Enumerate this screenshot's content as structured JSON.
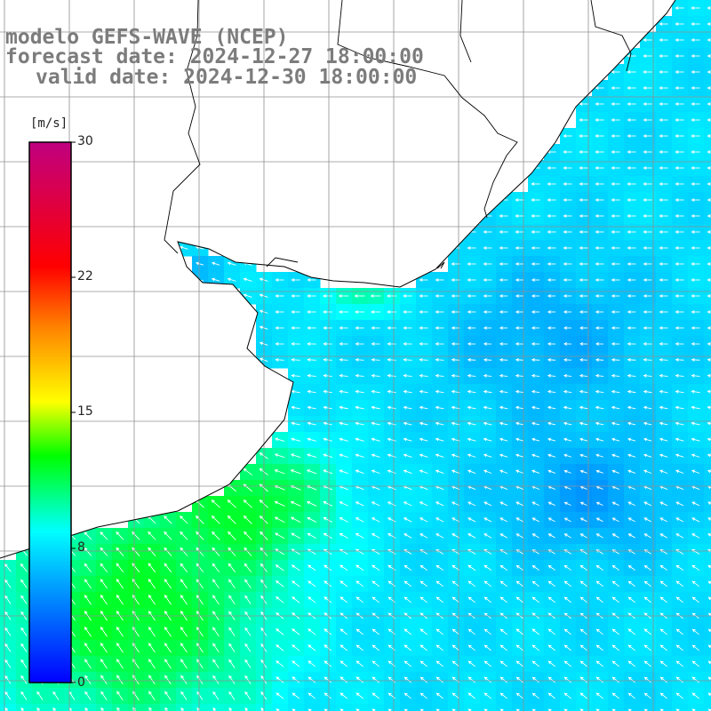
{
  "title": {
    "model": "modelo GEFS-WAVE (NCEP)",
    "forecast": "forecast date: 2024-12-27 18:00:00",
    "valid": "valid date: 2024-12-30 18:00:00"
  },
  "colorbar": {
    "unit": "[m/s]",
    "ticks": [
      "30",
      "22",
      "15",
      "8",
      "0"
    ],
    "stops": [
      "#0000ff",
      "#00a0ff",
      "#00ffff",
      "#00ff00",
      "#ffff00",
      "#ff8000",
      "#ff0000",
      "#c00080"
    ]
  },
  "colors": {
    "land": "#ffffff",
    "grid": "#888888",
    "coast": "#000000",
    "arrow": "#ffffff"
  },
  "wind_field": {
    "description_units": "m/s",
    "dominant_direction": "from east / northeast",
    "speed_range": [
      5,
      14
    ]
  }
}
